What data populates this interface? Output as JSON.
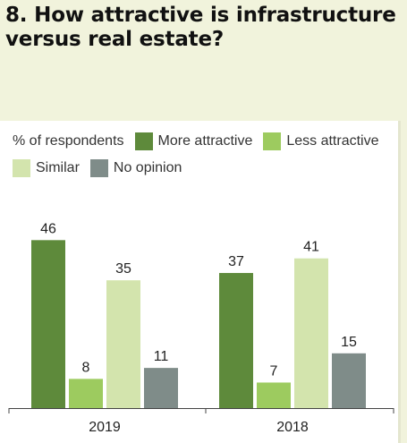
{
  "title": {
    "line1": "8. How attractive is infrastructure",
    "line2": "versus real estate?"
  },
  "legend": {
    "prefix": "% of respondents",
    "items": [
      {
        "label": "More attractive",
        "color": "#5e8a3b"
      },
      {
        "label": "Less attractive",
        "color": "#9dcb5f"
      },
      {
        "label": "Similar",
        "color": "#d3e4ad"
      },
      {
        "label": "No opinion",
        "color": "#7f8c89"
      }
    ]
  },
  "chart_data": {
    "type": "bar",
    "title": "8. How attractive is infrastructure versus real estate?",
    "ylabel": "% of respondents",
    "categories": [
      "2019",
      "2018"
    ],
    "series": [
      {
        "name": "More attractive",
        "values": [
          46,
          37
        ],
        "color": "#5e8a3b"
      },
      {
        "name": "Less attractive",
        "values": [
          8,
          7
        ],
        "color": "#9dcb5f"
      },
      {
        "name": "Similar",
        "values": [
          35,
          41
        ],
        "color": "#d3e4ad"
      },
      {
        "name": "No opinion",
        "values": [
          11,
          15
        ],
        "color": "#7f8c89"
      }
    ],
    "ylim": [
      0,
      50
    ],
    "grid": false,
    "legend": "top"
  }
}
